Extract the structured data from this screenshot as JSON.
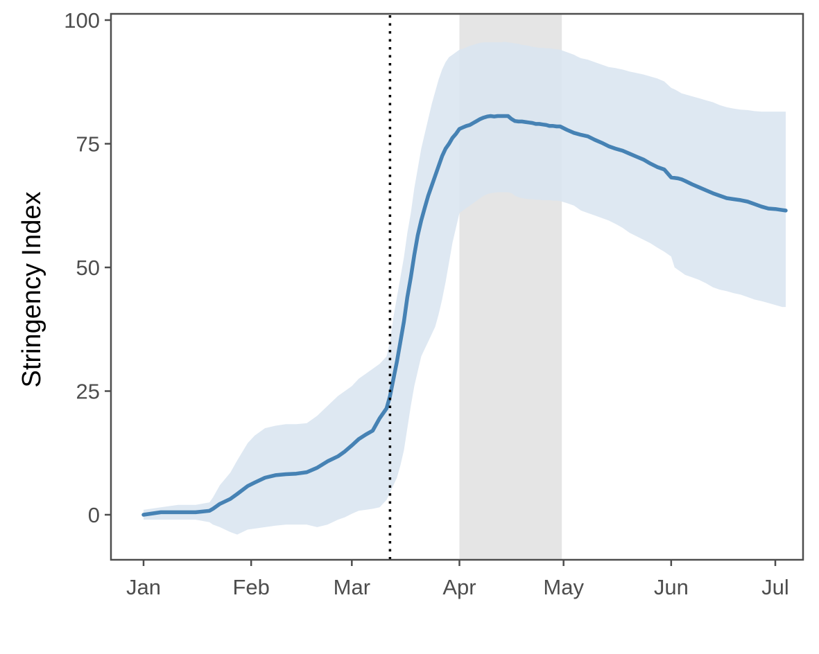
{
  "chart_data": {
    "type": "line",
    "title": "",
    "xlabel": "",
    "ylabel": "Stringency Index",
    "x_unit": "day_of_year_2020",
    "xlim": [
      -3,
      182
    ],
    "ylim": [
      -9,
      101
    ],
    "y_ticks": [
      0,
      25,
      50,
      75,
      100
    ],
    "x_ticks": [
      {
        "day": 0,
        "label": "Jan"
      },
      {
        "day": 31,
        "label": "Feb"
      },
      {
        "day": 60,
        "label": "Mar"
      },
      {
        "day": 91,
        "label": "Apr"
      },
      {
        "day": 121,
        "label": "May"
      },
      {
        "day": 152,
        "label": "Jun"
      },
      {
        "day": 182,
        "label": "Jul"
      }
    ],
    "shaded_period": {
      "start_day": 91,
      "end_day": 120.5
    },
    "reference_line": {
      "day": 71,
      "style": "dotted"
    },
    "grid": false,
    "colors": {
      "line": "#4682b4",
      "band": "#dae5f0",
      "shade": "#e5e5e5",
      "axis": "#4d4d4d",
      "ref": "#000000"
    },
    "series": [
      {
        "name": "mean",
        "x": [
          0,
          5,
          10,
          15,
          19,
          20,
          22,
          25,
          27,
          30,
          32,
          35,
          38,
          41,
          44,
          47,
          50,
          53,
          56,
          58,
          60,
          62,
          64,
          66,
          68,
          70,
          71,
          72,
          73,
          74,
          75,
          76,
          77,
          78,
          79,
          80,
          81,
          82,
          83,
          84,
          85,
          86,
          87,
          88,
          89,
          90,
          91,
          92,
          93,
          94,
          95,
          96,
          97,
          98,
          99,
          100,
          101,
          102,
          103,
          104,
          105,
          106,
          107,
          108,
          109,
          110,
          111,
          112,
          113,
          114,
          115,
          116,
          117,
          118,
          119,
          120,
          122,
          124,
          125,
          126,
          128,
          130,
          132,
          134,
          136,
          138,
          140,
          142,
          144,
          146,
          148,
          150,
          152,
          153,
          154,
          155,
          156,
          158,
          160,
          162,
          164,
          166,
          168,
          170,
          172,
          174,
          176,
          178,
          180,
          182,
          184,
          185
        ],
        "values": [
          0,
          0.5,
          0.5,
          0.5,
          0.8,
          1.2,
          2.2,
          3.2,
          4.2,
          5.8,
          6.5,
          7.5,
          8.0,
          8.2,
          8.3,
          8.6,
          9.5,
          10.8,
          11.8,
          12.8,
          14.0,
          15.3,
          16.2,
          17.0,
          19.5,
          21.5,
          24.0,
          27.5,
          31.0,
          35.0,
          39.0,
          44.0,
          48.0,
          52.5,
          56.5,
          59.5,
          62.0,
          64.5,
          66.5,
          68.5,
          70.5,
          72.5,
          74.0,
          75.0,
          76.2,
          77.0,
          78.0,
          78.3,
          78.6,
          78.8,
          79.2,
          79.6,
          80.0,
          80.3,
          80.5,
          80.6,
          80.5,
          80.6,
          80.6,
          80.6,
          80.6,
          80.0,
          79.6,
          79.5,
          79.5,
          79.4,
          79.3,
          79.2,
          79.0,
          79.0,
          78.9,
          78.8,
          78.6,
          78.6,
          78.5,
          78.5,
          77.8,
          77.2,
          77.0,
          76.8,
          76.5,
          75.8,
          75.2,
          74.5,
          74.0,
          73.6,
          73.0,
          72.4,
          71.8,
          71.0,
          70.3,
          69.8,
          68.2,
          68.1,
          68.0,
          67.8,
          67.5,
          66.8,
          66.2,
          65.6,
          65.0,
          64.5,
          64.0,
          63.8,
          63.6,
          63.3,
          62.8,
          62.3,
          61.9,
          61.8,
          61.6,
          61.5
        ]
      },
      {
        "name": "upper band",
        "x": [
          0,
          5,
          10,
          15,
          19,
          20,
          22,
          25,
          27,
          30,
          32,
          35,
          38,
          41,
          44,
          47,
          50,
          53,
          56,
          58,
          60,
          62,
          64,
          66,
          68,
          70,
          71,
          72,
          73,
          74,
          75,
          76,
          77,
          78,
          79,
          80,
          81,
          82,
          83,
          84,
          85,
          86,
          87,
          88,
          89,
          90,
          91,
          92,
          93,
          94,
          95,
          96,
          97,
          98,
          99,
          100,
          101,
          102,
          103,
          104,
          105,
          106,
          107,
          108,
          109,
          110,
          111,
          112,
          113,
          114,
          115,
          116,
          117,
          118,
          119,
          120,
          122,
          124,
          125,
          126,
          128,
          130,
          132,
          134,
          136,
          138,
          140,
          142,
          144,
          146,
          148,
          150,
          152,
          153,
          154,
          155,
          156,
          158,
          160,
          162,
          164,
          166,
          168,
          170,
          172,
          174,
          176,
          178,
          180,
          182,
          184,
          185
        ],
        "values": [
          1.0,
          1.5,
          2.0,
          2.0,
          2.5,
          3.5,
          6.0,
          8.5,
          11.0,
          14.5,
          16.0,
          17.5,
          18.0,
          18.3,
          18.3,
          18.5,
          20.0,
          22.0,
          24.0,
          25.0,
          26.0,
          27.5,
          28.5,
          29.5,
          30.5,
          32.0,
          35.0,
          40.0,
          44.0,
          48.0,
          52.0,
          57.0,
          61.0,
          66.0,
          70.0,
          74.0,
          77.0,
          80.0,
          83.0,
          85.5,
          88.0,
          90.0,
          91.5,
          92.5,
          93.0,
          93.5,
          94.0,
          94.2,
          94.5,
          94.8,
          95.0,
          95.2,
          95.4,
          95.5,
          95.5,
          95.5,
          95.5,
          95.5,
          95.5,
          95.6,
          95.5,
          95.4,
          95.3,
          95.2,
          95.0,
          94.9,
          94.8,
          94.6,
          94.5,
          94.4,
          94.4,
          94.3,
          94.3,
          94.2,
          94.1,
          94.0,
          93.5,
          93.0,
          92.6,
          92.3,
          92.0,
          91.5,
          91.0,
          90.5,
          90.3,
          90.0,
          89.6,
          89.3,
          89.0,
          88.6,
          88.2,
          87.6,
          86.3,
          86.0,
          85.6,
          85.2,
          85.0,
          84.6,
          84.2,
          83.8,
          83.4,
          82.8,
          82.4,
          82.1,
          81.9,
          81.8,
          81.6,
          81.5,
          81.5,
          81.5,
          81.5,
          81.5
        ]
      },
      {
        "name": "lower band",
        "x": [
          0,
          5,
          10,
          15,
          19,
          20,
          22,
          25,
          27,
          30,
          32,
          35,
          38,
          41,
          44,
          47,
          50,
          53,
          56,
          58,
          60,
          62,
          64,
          66,
          68,
          70,
          71,
          72,
          73,
          74,
          75,
          76,
          77,
          78,
          79,
          80,
          81,
          82,
          83,
          84,
          85,
          86,
          87,
          88,
          89,
          90,
          91,
          92,
          93,
          94,
          95,
          96,
          97,
          98,
          99,
          100,
          101,
          102,
          103,
          104,
          105,
          106,
          107,
          108,
          109,
          110,
          111,
          112,
          113,
          114,
          115,
          116,
          117,
          118,
          119,
          120,
          122,
          124,
          125,
          126,
          128,
          130,
          132,
          134,
          136,
          138,
          140,
          142,
          144,
          146,
          148,
          150,
          152,
          153,
          154,
          155,
          156,
          158,
          160,
          162,
          164,
          166,
          168,
          170,
          172,
          174,
          176,
          178,
          180,
          182,
          184,
          185
        ],
        "values": [
          -1.0,
          -1.0,
          -1.0,
          -1.0,
          -1.5,
          -2.0,
          -2.5,
          -3.5,
          -4.0,
          -3.0,
          -2.8,
          -2.5,
          -2.2,
          -2.0,
          -2.0,
          -2.0,
          -2.5,
          -2.0,
          -1.0,
          -0.5,
          0.2,
          0.8,
          1.0,
          1.2,
          1.5,
          3.0,
          4.5,
          6.0,
          7.5,
          10.0,
          13.0,
          17.5,
          22.0,
          26.0,
          29.0,
          32.0,
          33.5,
          35.0,
          36.5,
          38.0,
          40.5,
          43.5,
          47.0,
          51.0,
          55.0,
          58.0,
          61.0,
          61.5,
          62.0,
          62.5,
          63.0,
          63.5,
          64.0,
          64.5,
          64.8,
          65.0,
          65.1,
          65.2,
          65.2,
          65.2,
          65.2,
          65.0,
          64.5,
          64.2,
          64.0,
          63.9,
          63.8,
          63.8,
          63.7,
          63.7,
          63.6,
          63.6,
          63.6,
          63.5,
          63.5,
          63.4,
          63.0,
          62.5,
          62.0,
          61.5,
          61.0,
          60.5,
          60.0,
          59.5,
          58.8,
          58.0,
          57.0,
          56.3,
          55.6,
          54.9,
          54.0,
          53.2,
          52.2,
          50.0,
          49.5,
          49.0,
          48.5,
          48.0,
          47.5,
          46.8,
          46.0,
          45.5,
          45.2,
          44.8,
          44.5,
          44.0,
          43.5,
          43.2,
          42.8,
          42.4,
          42.0,
          42.0
        ]
      }
    ]
  }
}
